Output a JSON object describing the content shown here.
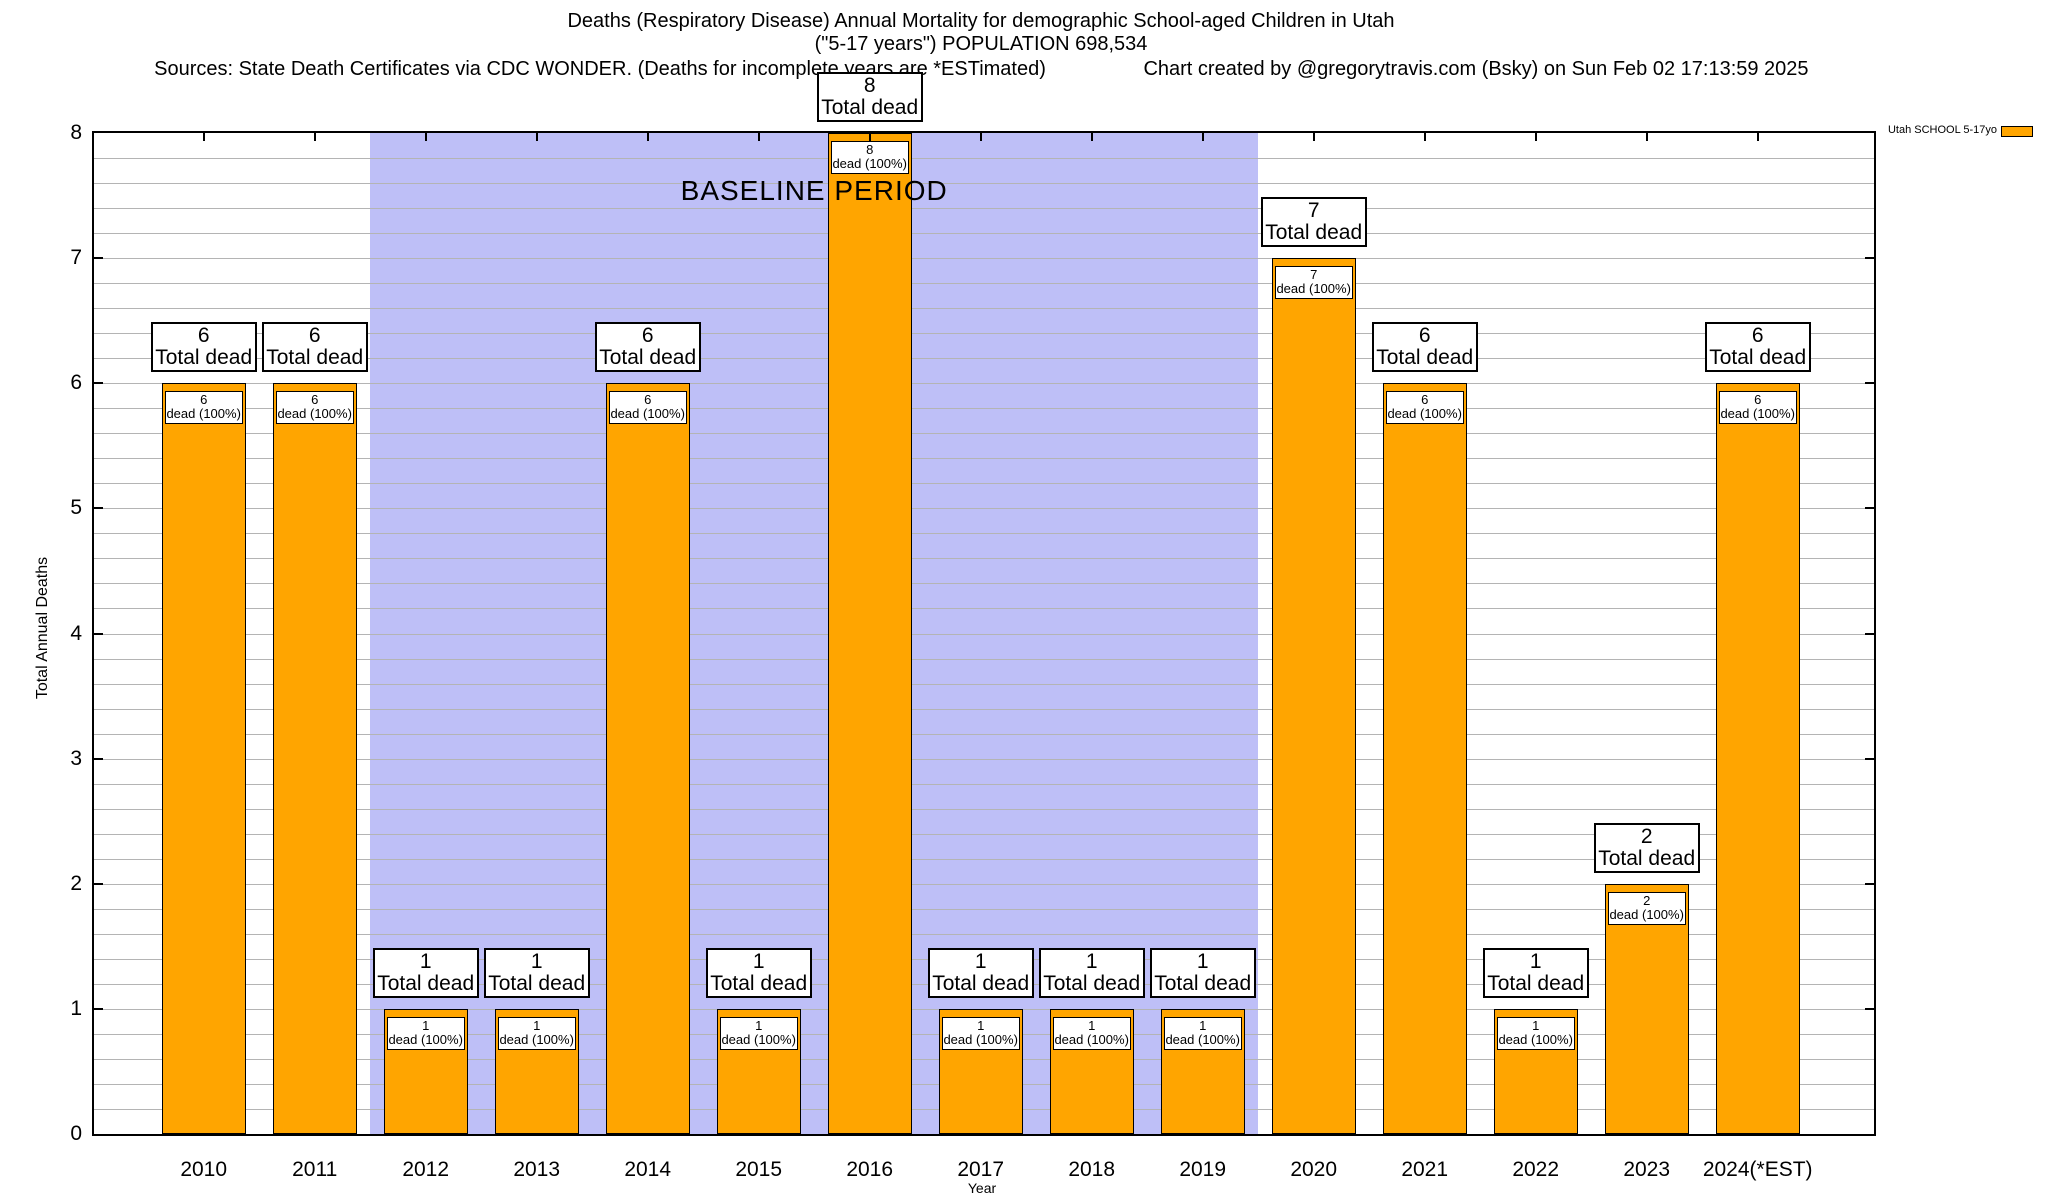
{
  "header": {
    "title_line1": "Deaths (Respiratory Disease) Annual Mortality for demographic School-aged Children in Utah",
    "title_line2": "(\"5-17 years\") POPULATION 698,534",
    "sources_line": "Sources: State Death Certificates via CDC WONDER. (Deaths for incomplete years are *ESTimated)",
    "credit_line": "Chart created by @gregorytravis.com (Bsky) on Sun Feb 02 17:13:59 2025"
  },
  "legend": {
    "label": "Utah SCHOOL 5-17yo",
    "swatch_color": "#FFA500"
  },
  "axes": {
    "y_title": "Total Annual Deaths",
    "x_title": "Year",
    "y_ticks": [
      0,
      1,
      2,
      3,
      4,
      5,
      6,
      7,
      8
    ],
    "y_min": 0,
    "y_max": 8,
    "y_minor_step": 0.2
  },
  "baseline_period": {
    "label": "BASELINE PERIOD",
    "start_category": "2012",
    "end_category": "2019",
    "color": "#BEBFF7"
  },
  "chart_data": {
    "type": "bar",
    "title": "Deaths (Respiratory Disease) Annual Mortality for demographic School-aged Children in Utah (\"5-17 years\") POPULATION 698,534",
    "xlabel": "Year",
    "ylabel": "Total Annual Deaths",
    "ylim": [
      0,
      8
    ],
    "grid": true,
    "legend_position": "top-right",
    "categories": [
      "2010",
      "2011",
      "2012",
      "2013",
      "2014",
      "2015",
      "2016",
      "2017",
      "2018",
      "2019",
      "2020",
      "2021",
      "2022",
      "2023",
      "2024(*EST)"
    ],
    "series": [
      {
        "name": "Utah SCHOOL 5-17yo",
        "color": "#FFA500",
        "values": [
          6,
          6,
          1,
          1,
          6,
          1,
          8,
          1,
          1,
          1,
          7,
          6,
          1,
          2,
          6
        ]
      }
    ],
    "bar_annotation_outer_suffix": "Total dead",
    "bar_annotation_inner_suffix": "dead (100%)",
    "gridline_color": "#b4b4b4"
  }
}
